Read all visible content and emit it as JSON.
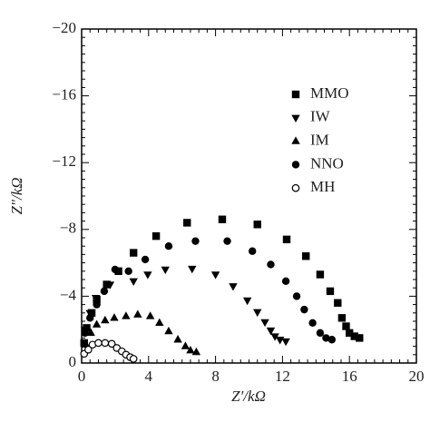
{
  "chart_data": {
    "type": "scatter",
    "x_label": "Z′/kΩ",
    "y_label": "Z″/kΩ",
    "xlim": [
      0,
      20
    ],
    "xticks": [
      0,
      4,
      8,
      12,
      16,
      20
    ],
    "ylim": [
      0,
      -20
    ],
    "yticks": [
      0,
      {
        "value": -4,
        "label": "−4"
      },
      {
        "value": -8,
        "label": "−8"
      },
      {
        "value": -12,
        "label": "−12"
      },
      {
        "value": -16,
        "label": "−16"
      },
      {
        "value": -20,
        "label": "−20"
      }
    ],
    "minor_ticks": true,
    "legend": "upper right",
    "series": [
      {
        "name": "MMO",
        "marker": "square",
        "color": "#000000",
        "x": [
          0.15,
          0.3,
          0.6,
          0.9,
          1.5,
          2.2,
          3.1,
          4.45,
          6.3,
          8.4,
          10.5,
          12.25,
          13.4,
          14.25,
          14.85,
          15.3,
          15.55,
          15.8,
          16.0,
          16.3,
          16.6
        ],
        "values": [
          -1.2,
          -2.1,
          -3.0,
          -3.8,
          -4.7,
          -5.5,
          -6.6,
          -7.6,
          -8.4,
          -8.6,
          -8.3,
          -7.4,
          -6.4,
          -5.3,
          -4.3,
          -3.6,
          -2.7,
          -2.2,
          -1.8,
          -1.6,
          -1.5
        ]
      },
      {
        "name": "IW",
        "marker": "triangle-down",
        "color": "#000000",
        "x": [
          0.2,
          0.5,
          0.85,
          1.7,
          3.1,
          3.95,
          5.0,
          6.6,
          8.0,
          9.05,
          9.9,
          10.5,
          10.95,
          11.3,
          11.55,
          11.85,
          12.2
        ],
        "values": [
          -2.0,
          -3.0,
          -3.9,
          -4.7,
          -4.9,
          -5.3,
          -5.6,
          -5.65,
          -5.3,
          -4.6,
          -3.75,
          -3.05,
          -2.45,
          -1.95,
          -1.6,
          -1.4,
          -1.3
        ]
      },
      {
        "name": "IM",
        "marker": "triangle",
        "color": "#000000",
        "x": [
          0.25,
          0.55,
          0.9,
          1.4,
          1.95,
          2.65,
          3.35,
          4.1,
          4.65,
          5.2,
          5.75,
          6.2,
          6.5,
          6.85
        ],
        "values": [
          -1.1,
          -1.8,
          -2.3,
          -2.55,
          -2.7,
          -2.8,
          -2.9,
          -2.8,
          -2.4,
          -1.9,
          -1.4,
          -1.0,
          -0.75,
          -0.65
        ]
      },
      {
        "name": "NNO",
        "marker": "circle",
        "color": "#000000",
        "x": [
          0.2,
          0.5,
          0.9,
          1.35,
          2.0,
          2.8,
          3.8,
          5.2,
          6.8,
          8.7,
          10.2,
          11.3,
          12.2,
          12.85,
          13.3,
          13.8,
          14.25,
          14.6,
          14.95
        ],
        "values": [
          -1.8,
          -2.7,
          -3.5,
          -4.3,
          -5.6,
          -5.5,
          -6.2,
          -7.0,
          -7.3,
          -7.3,
          -6.7,
          -5.9,
          -4.9,
          -4.0,
          -3.2,
          -2.4,
          -1.8,
          -1.5,
          -1.4
        ]
      },
      {
        "name": "MH",
        "marker": "open-circle",
        "color": "#000000",
        "x": [
          0.15,
          0.4,
          0.65,
          1.0,
          1.4,
          1.8,
          2.1,
          2.4,
          2.65,
          2.9,
          3.1
        ],
        "values": [
          -0.55,
          -0.8,
          -1.1,
          -1.2,
          -1.2,
          -1.15,
          -0.9,
          -0.7,
          -0.5,
          -0.35,
          -0.25
        ]
      }
    ]
  }
}
